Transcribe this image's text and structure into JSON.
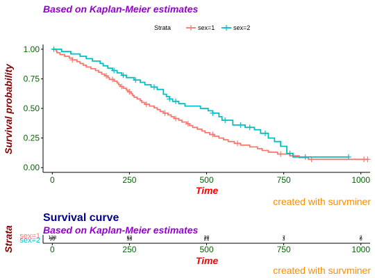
{
  "chart_data": [
    {
      "type": "line",
      "subtitle": "Based on Kaplan-Meier estimates",
      "xlabel": "Time",
      "ylabel": "Survival probability",
      "xlim": [
        -30,
        1030
      ],
      "ylim": [
        -0.04,
        1.04
      ],
      "x_ticks": [
        0,
        250,
        500,
        750,
        1000
      ],
      "y_ticks": [
        0.0,
        0.25,
        0.5,
        0.75,
        1.0
      ],
      "y_tick_labels": [
        "0.00",
        "0.25",
        "0.50",
        "0.75",
        "1.00"
      ],
      "grid": false,
      "legend": {
        "title": "Strata",
        "position": "top"
      },
      "caption": "created with survminer",
      "series": [
        {
          "name": "sex=1",
          "color": "#f8766d",
          "steps": [
            [
              0,
              1.0
            ],
            [
              12,
              0.985
            ],
            [
              15,
              0.97
            ],
            [
              25,
              0.955
            ],
            [
              40,
              0.94
            ],
            [
              55,
              0.925
            ],
            [
              65,
              0.91
            ],
            [
              80,
              0.895
            ],
            [
              90,
              0.88
            ],
            [
              100,
              0.865
            ],
            [
              110,
              0.85
            ],
            [
              125,
              0.835
            ],
            [
              140,
              0.82
            ],
            [
              150,
              0.805
            ],
            [
              160,
              0.79
            ],
            [
              170,
              0.775
            ],
            [
              180,
              0.76
            ],
            [
              185,
              0.745
            ],
            [
              200,
              0.73
            ],
            [
              210,
              0.715
            ],
            [
              215,
              0.7
            ],
            [
              220,
              0.685
            ],
            [
              230,
              0.67
            ],
            [
              240,
              0.655
            ],
            [
              245,
              0.64
            ],
            [
              255,
              0.625
            ],
            [
              260,
              0.61
            ],
            [
              265,
              0.595
            ],
            [
              275,
              0.58
            ],
            [
              285,
              0.565
            ],
            [
              290,
              0.55
            ],
            [
              300,
              0.535
            ],
            [
              315,
              0.52
            ],
            [
              330,
              0.505
            ],
            [
              340,
              0.49
            ],
            [
              350,
              0.475
            ],
            [
              360,
              0.46
            ],
            [
              375,
              0.445
            ],
            [
              385,
              0.43
            ],
            [
              395,
              0.415
            ],
            [
              410,
              0.4
            ],
            [
              420,
              0.385
            ],
            [
              435,
              0.37
            ],
            [
              445,
              0.355
            ],
            [
              455,
              0.34
            ],
            [
              470,
              0.325
            ],
            [
              485,
              0.31
            ],
            [
              495,
              0.295
            ],
            [
              510,
              0.28
            ],
            [
              525,
              0.265
            ],
            [
              540,
              0.25
            ],
            [
              555,
              0.235
            ],
            [
              570,
              0.22
            ],
            [
              590,
              0.205
            ],
            [
              610,
              0.19
            ],
            [
              640,
              0.175
            ],
            [
              665,
              0.16
            ],
            [
              680,
              0.145
            ],
            [
              700,
              0.13
            ],
            [
              730,
              0.115
            ],
            [
              770,
              0.1
            ],
            [
              800,
              0.085
            ],
            [
              830,
              0.07
            ],
            [
              1022,
              0.07
            ]
          ],
          "censored": [
            [
              65,
              0.91
            ],
            [
              175,
              0.775
            ],
            [
              195,
              0.745
            ],
            [
              225,
              0.685
            ],
            [
              250,
              0.64
            ],
            [
              305,
              0.535
            ],
            [
              365,
              0.46
            ],
            [
              400,
              0.415
            ],
            [
              440,
              0.37
            ],
            [
              520,
              0.28
            ],
            [
              600,
              0.205
            ],
            [
              740,
              0.115
            ],
            [
              840,
              0.07
            ],
            [
              1010,
              0.07
            ],
            [
              1022,
              0.07
            ]
          ]
        },
        {
          "name": "sex=2",
          "color": "#00bfc4",
          "steps": [
            [
              0,
              1.0
            ],
            [
              30,
              0.98
            ],
            [
              60,
              0.96
            ],
            [
              90,
              0.94
            ],
            [
              110,
              0.92
            ],
            [
              130,
              0.9
            ],
            [
              155,
              0.88
            ],
            [
              165,
              0.86
            ],
            [
              180,
              0.84
            ],
            [
              195,
              0.82
            ],
            [
              210,
              0.8
            ],
            [
              225,
              0.78
            ],
            [
              240,
              0.76
            ],
            [
              265,
              0.74
            ],
            [
              285,
              0.72
            ],
            [
              300,
              0.7
            ],
            [
              320,
              0.68
            ],
            [
              340,
              0.66
            ],
            [
              360,
              0.62
            ],
            [
              370,
              0.6
            ],
            [
              380,
              0.58
            ],
            [
              390,
              0.56
            ],
            [
              410,
              0.54
            ],
            [
              430,
              0.52
            ],
            [
              480,
              0.5
            ],
            [
              505,
              0.48
            ],
            [
              520,
              0.46
            ],
            [
              540,
              0.43
            ],
            [
              550,
              0.4
            ],
            [
              585,
              0.36
            ],
            [
              625,
              0.34
            ],
            [
              655,
              0.32
            ],
            [
              675,
              0.29
            ],
            [
              700,
              0.25
            ],
            [
              720,
              0.22
            ],
            [
              740,
              0.18
            ],
            [
              760,
              0.12
            ],
            [
              780,
              0.09
            ],
            [
              960,
              0.09
            ]
          ],
          "censored": [
            [
              5,
              1.0
            ],
            [
              200,
              0.82
            ],
            [
              230,
              0.78
            ],
            [
              270,
              0.74
            ],
            [
              330,
              0.68
            ],
            [
              380,
              0.58
            ],
            [
              400,
              0.56
            ],
            [
              520,
              0.46
            ],
            [
              560,
              0.4
            ],
            [
              610,
              0.36
            ],
            [
              640,
              0.34
            ],
            [
              690,
              0.29
            ],
            [
              770,
              0.12
            ],
            [
              820,
              0.09
            ],
            [
              960,
              0.09
            ]
          ]
        }
      ]
    },
    {
      "type": "table",
      "title": "Survival curve",
      "subtitle": "Based on Kaplan-Meier estimates",
      "xlabel": "Time",
      "ylabel": "Strata",
      "x_ticks": [
        0,
        250,
        500,
        750,
        1000
      ],
      "rows": [
        {
          "name": "sex=1",
          "color": "#f8766d",
          "values": [
            "138",
            "62",
            "20",
            "7",
            "2"
          ]
        },
        {
          "name": "sex=2",
          "color": "#00bfc4",
          "values": [
            "90",
            "53",
            "21",
            "3",
            "0"
          ]
        }
      ],
      "caption": "created with survminer"
    }
  ]
}
